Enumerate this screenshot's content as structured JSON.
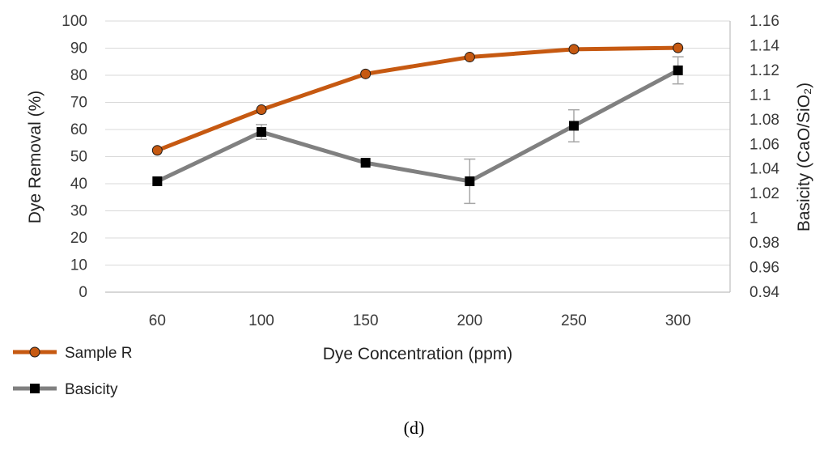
{
  "chart_data": {
    "type": "line",
    "title": "",
    "panel_label": "(d)",
    "categories": [
      "60",
      "100",
      "150",
      "200",
      "250",
      "300"
    ],
    "xlabel": "Dye Concentration (ppm)",
    "ylabel_left": "Dye Removal (%)",
    "ylabel_right": "Basicity (CaO/SiO₂)",
    "ylim_left": [
      0,
      100
    ],
    "ylim_right": [
      0.94,
      1.16
    ],
    "yticks_left": [
      "0",
      "10",
      "20",
      "30",
      "40",
      "50",
      "60",
      "70",
      "80",
      "90",
      "100"
    ],
    "yticks_right": [
      "0.94",
      "0.96",
      "0.98",
      "1",
      "1.02",
      "1.04",
      "1.06",
      "1.08",
      "1.1",
      "1.12",
      "1.14",
      "1.16"
    ],
    "grid": true,
    "legend_position": "bottom-left",
    "series": [
      {
        "name": "Sample R",
        "axis": "left",
        "marker": "circle",
        "color": "#C65911",
        "values": [
          52.3,
          67.3,
          80.5,
          86.7,
          89.6,
          90.1
        ]
      },
      {
        "name": "Basicity",
        "axis": "right",
        "marker": "square",
        "color": "#808080",
        "values": [
          1.03,
          1.07,
          1.045,
          1.03,
          1.075,
          1.12
        ],
        "error": [
          0.0,
          0.006,
          0.0,
          0.018,
          0.013,
          0.011
        ]
      }
    ]
  }
}
